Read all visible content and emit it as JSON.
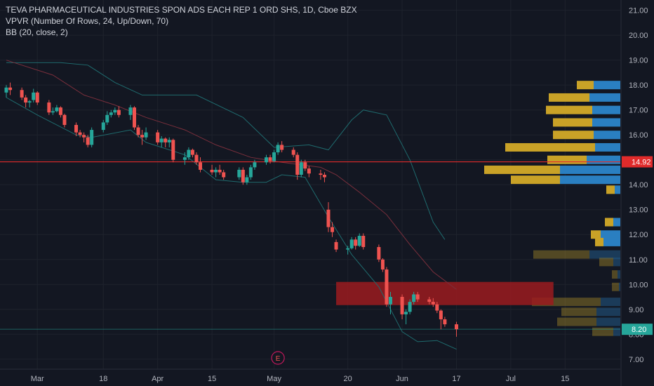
{
  "legend": {
    "title": "TEVA PHARMACEUTICAL INDUSTRIES SPON ADS EACH REP 1 ORD SHS, 1D, Cboe BZX",
    "vpvr": "VPVR (Number Of Rows, 24, Up/Down, 70)",
    "bb": "BB (20, close, 2)"
  },
  "colors": {
    "background": "#131722",
    "grid": "#1e222d",
    "up": "#26a69a",
    "down": "#ef5350",
    "bb_band": "#1f6b6e",
    "bb_basis": "#7a2f3c",
    "vp_up": "#2a7fc1",
    "vp_down": "#c9a227",
    "price_line": "#e02b2b",
    "zone": "#9b1b1f",
    "last_label": "#26a69a",
    "axis_text": "#b2b5be"
  },
  "chart_data": {
    "type": "candlestick",
    "ylim": [
      6.6,
      21.3
    ],
    "yticks": [
      "21.00",
      "20.00",
      "19.00",
      "18.00",
      "17.00",
      "16.00",
      "15.00",
      "14.00",
      "13.00",
      "12.00",
      "11.00",
      "10.00",
      "9.00",
      "8.00",
      "7.00"
    ],
    "xticks": [
      "Mar",
      "18",
      "Apr",
      "15",
      "May",
      "20",
      "Jun",
      "17",
      "Jul",
      "15"
    ],
    "dates": [
      "2019-02-21",
      "2019-02-22",
      "2019-02-25",
      "2019-02-26",
      "2019-02-27",
      "2019-02-28",
      "2019-03-01",
      "2019-03-04",
      "2019-03-05",
      "2019-03-06",
      "2019-03-07",
      "2019-03-08",
      "2019-03-11",
      "2019-03-12",
      "2019-03-13",
      "2019-03-14",
      "2019-03-15",
      "2019-03-18",
      "2019-03-19",
      "2019-03-20",
      "2019-03-21",
      "2019-03-22",
      "2019-03-25",
      "2019-03-26",
      "2019-03-27",
      "2019-03-28",
      "2019-03-29",
      "2019-04-01",
      "2019-04-02",
      "2019-04-03",
      "2019-04-04",
      "2019-04-05",
      "2019-04-08",
      "2019-04-09",
      "2019-04-10",
      "2019-04-11",
      "2019-04-12",
      "2019-04-15",
      "2019-04-16",
      "2019-04-17",
      "2019-04-18",
      "2019-04-22",
      "2019-04-23",
      "2019-04-24",
      "2019-04-25",
      "2019-04-26",
      "2019-04-29",
      "2019-04-30",
      "2019-05-01",
      "2019-05-02",
      "2019-05-03",
      "2019-05-06",
      "2019-05-07",
      "2019-05-08",
      "2019-05-09",
      "2019-05-10",
      "2019-05-13",
      "2019-05-14",
      "2019-05-15",
      "2019-05-16",
      "2019-05-17",
      "2019-05-20",
      "2019-05-21",
      "2019-05-22",
      "2019-05-23",
      "2019-05-24",
      "2019-05-28",
      "2019-05-29",
      "2019-05-30",
      "2019-05-31",
      "2019-06-03",
      "2019-06-04",
      "2019-06-05",
      "2019-06-06",
      "2019-06-07",
      "2019-06-10",
      "2019-06-11",
      "2019-06-12",
      "2019-06-13",
      "2019-06-14",
      "2019-06-17"
    ],
    "candles": [
      [
        17.7,
        18.0,
        17.5,
        17.9
      ],
      [
        17.9,
        18.1,
        17.6,
        17.8
      ],
      [
        17.8,
        17.9,
        17.4,
        17.5
      ],
      [
        17.5,
        17.6,
        17.1,
        17.3
      ],
      [
        17.3,
        17.4,
        17.1,
        17.35
      ],
      [
        17.4,
        17.85,
        17.3,
        17.7
      ],
      [
        17.7,
        17.75,
        17.2,
        17.3
      ],
      [
        17.3,
        17.4,
        16.8,
        16.9
      ],
      [
        16.9,
        17.1,
        16.8,
        16.95
      ],
      [
        16.95,
        17.2,
        16.9,
        17.1
      ],
      [
        17.1,
        17.15,
        16.7,
        16.8
      ],
      [
        16.8,
        16.85,
        16.3,
        16.4
      ],
      [
        16.4,
        16.5,
        15.95,
        16.1
      ],
      [
        16.1,
        16.2,
        15.9,
        16.0
      ],
      [
        16.0,
        16.1,
        15.7,
        15.9
      ],
      [
        15.9,
        16.0,
        15.5,
        15.6
      ],
      [
        15.6,
        16.3,
        15.5,
        16.2
      ],
      [
        16.2,
        16.6,
        16.1,
        16.5
      ],
      [
        16.5,
        16.95,
        16.4,
        16.8
      ],
      [
        16.8,
        17.0,
        16.7,
        16.9
      ],
      [
        16.9,
        17.1,
        16.8,
        17.0
      ],
      [
        17.0,
        17.15,
        16.7,
        16.8
      ],
      [
        16.8,
        17.2,
        16.6,
        17.1
      ],
      [
        17.1,
        17.15,
        16.2,
        16.3
      ],
      [
        16.3,
        16.4,
        15.9,
        16.0
      ],
      [
        16.0,
        16.2,
        15.6,
        15.9
      ],
      [
        15.9,
        16.3,
        15.8,
        16.1
      ],
      [
        16.1,
        16.2,
        15.6,
        15.7
      ],
      [
        15.7,
        15.95,
        15.5,
        15.85
      ],
      [
        15.85,
        15.9,
        15.5,
        15.7
      ],
      [
        15.7,
        15.9,
        15.5,
        15.8
      ],
      [
        15.8,
        15.85,
        14.9,
        15.0
      ],
      [
        15.0,
        15.3,
        14.8,
        15.1
      ],
      [
        15.1,
        15.5,
        15.0,
        15.4
      ],
      [
        15.4,
        15.45,
        15.1,
        15.2
      ],
      [
        15.2,
        15.3,
        14.8,
        14.9
      ],
      [
        14.9,
        15.1,
        14.5,
        14.6
      ],
      [
        14.6,
        14.8,
        14.4,
        14.5
      ],
      [
        14.5,
        14.7,
        14.3,
        14.6
      ],
      [
        14.6,
        14.8,
        14.4,
        14.5
      ],
      [
        14.5,
        14.6,
        14.2,
        14.3
      ],
      [
        14.3,
        14.7,
        14.2,
        14.6
      ],
      [
        14.6,
        14.7,
        14.0,
        14.1
      ],
      [
        14.1,
        14.4,
        14.0,
        14.3
      ],
      [
        14.3,
        14.8,
        14.2,
        14.7
      ],
      [
        14.7,
        15.0,
        14.6,
        14.9
      ],
      [
        14.9,
        15.2,
        14.8,
        15.1
      ],
      [
        15.1,
        15.2,
        14.85,
        14.95
      ],
      [
        14.95,
        15.4,
        14.9,
        15.3
      ],
      [
        15.3,
        15.7,
        15.2,
        15.6
      ],
      [
        15.6,
        15.75,
        15.3,
        15.4
      ],
      [
        15.4,
        15.5,
        15.1,
        15.2
      ],
      [
        15.2,
        15.3,
        14.2,
        14.4
      ],
      [
        14.4,
        15.0,
        14.3,
        14.9
      ],
      [
        14.9,
        15.0,
        14.55,
        14.65
      ],
      [
        14.65,
        14.75,
        14.3,
        14.45
      ],
      [
        14.45,
        14.6,
        14.2,
        14.4
      ],
      [
        14.4,
        14.5,
        14.1,
        14.3
      ],
      [
        13.0,
        13.3,
        12.1,
        12.3
      ],
      [
        12.3,
        12.5,
        11.9,
        12.1
      ],
      [
        11.7,
        11.8,
        11.3,
        11.4
      ],
      [
        11.4,
        11.55,
        11.2,
        11.45
      ],
      [
        11.45,
        11.9,
        11.4,
        11.8
      ],
      [
        11.8,
        11.9,
        11.4,
        11.55
      ],
      [
        11.55,
        12.05,
        11.5,
        11.95
      ],
      [
        11.95,
        12.05,
        11.4,
        11.5
      ],
      [
        11.5,
        11.6,
        10.9,
        11.0
      ],
      [
        11.0,
        11.05,
        10.5,
        10.6
      ],
      [
        10.6,
        10.7,
        9.1,
        9.2
      ],
      [
        9.2,
        9.7,
        8.8,
        9.5
      ],
      [
        9.5,
        9.6,
        8.6,
        8.8
      ],
      [
        8.8,
        9.0,
        8.4,
        8.9
      ],
      [
        8.9,
        9.4,
        8.8,
        9.3
      ],
      [
        9.3,
        9.7,
        9.2,
        9.6
      ],
      [
        9.6,
        9.7,
        9.3,
        9.4
      ],
      [
        9.4,
        9.5,
        9.2,
        9.3
      ],
      [
        9.3,
        9.45,
        9.1,
        9.2
      ],
      [
        9.2,
        9.3,
        8.85,
        8.95
      ],
      [
        8.95,
        9.0,
        8.2,
        8.6
      ],
      [
        8.6,
        8.7,
        8.3,
        8.4
      ],
      [
        8.4,
        8.5,
        7.9,
        8.2
      ]
    ],
    "bb_upper": [
      [
        0,
        18.9
      ],
      [
        10,
        18.9
      ],
      [
        15,
        18.8
      ],
      [
        20,
        18.1
      ],
      [
        25,
        17.6
      ],
      [
        35,
        17.6
      ],
      [
        42,
        16.7
      ],
      [
        48,
        15.5
      ],
      [
        55,
        15.6
      ],
      [
        58,
        15.4
      ],
      [
        62,
        16.6
      ],
      [
        65,
        17.0
      ],
      [
        68,
        16.8
      ],
      [
        72,
        15.0
      ],
      [
        76,
        12.5
      ],
      [
        79,
        11.8
      ]
    ],
    "bb_basis": [
      [
        0,
        19.0
      ],
      [
        8,
        18.4
      ],
      [
        14,
        17.6
      ],
      [
        20,
        17.2
      ],
      [
        26,
        16.7
      ],
      [
        32,
        16.2
      ],
      [
        38,
        15.6
      ],
      [
        44,
        15.1
      ],
      [
        50,
        14.9
      ],
      [
        56,
        14.7
      ],
      [
        60,
        14.4
      ],
      [
        64,
        13.7
      ],
      [
        68,
        12.8
      ],
      [
        72,
        11.6
      ],
      [
        76,
        10.5
      ],
      [
        80,
        9.8
      ]
    ],
    "bb_lower": [
      [
        0,
        17.5
      ],
      [
        6,
        16.8
      ],
      [
        12,
        16.0
      ],
      [
        16,
        15.9
      ],
      [
        22,
        16.2
      ],
      [
        26,
        15.7
      ],
      [
        32,
        15.2
      ],
      [
        38,
        14.2
      ],
      [
        42,
        14.1
      ],
      [
        46,
        14.1
      ],
      [
        50,
        14.4
      ],
      [
        54,
        14.3
      ],
      [
        58,
        12.7
      ],
      [
        62,
        11.2
      ],
      [
        66,
        9.9
      ],
      [
        70,
        8.1
      ],
      [
        74,
        7.7
      ],
      [
        77,
        7.75
      ],
      [
        80,
        7.4
      ]
    ],
    "volume_profile": [
      {
        "price": 18.0,
        "up": 38,
        "down": 24
      },
      {
        "price": 17.5,
        "up": 44,
        "down": 58
      },
      {
        "price": 17.0,
        "up": 40,
        "down": 66
      },
      {
        "price": 16.5,
        "up": 40,
        "down": 56
      },
      {
        "price": 16.0,
        "up": 38,
        "down": 58
      },
      {
        "price": 15.5,
        "up": 36,
        "down": 128
      },
      {
        "price": 15.0,
        "up": 48,
        "down": 56
      },
      {
        "price": 14.6,
        "up": 86,
        "down": 108
      },
      {
        "price": 14.2,
        "up": 86,
        "down": 70
      },
      {
        "price": 13.8,
        "up": 8,
        "down": 12
      },
      {
        "price": 12.5,
        "up": 10,
        "down": 12
      },
      {
        "price": 12.0,
        "up": 28,
        "down": 14
      },
      {
        "price": 11.7,
        "up": 24,
        "down": 12
      },
      {
        "price": 11.2,
        "up": 44,
        "down": 80
      },
      {
        "price": 10.9,
        "up": 10,
        "down": 20
      },
      {
        "price": 10.4,
        "up": 4,
        "down": 8
      },
      {
        "price": 9.9,
        "up": 2,
        "down": 10
      },
      {
        "price": 9.3,
        "up": 28,
        "down": 98
      },
      {
        "price": 8.9,
        "up": 34,
        "down": 50
      },
      {
        "price": 8.5,
        "up": 34,
        "down": 56
      },
      {
        "price": 8.1,
        "up": 10,
        "down": 30
      }
    ],
    "horizontal_line": 14.92,
    "zone": {
      "date_start": "2019-05-17",
      "date_end": "2019-07-12",
      "price_low": 9.17,
      "price_high": 10.1
    },
    "last_price": "8.20",
    "line_label": "14.92",
    "event_marker": "E",
    "grid": true
  }
}
